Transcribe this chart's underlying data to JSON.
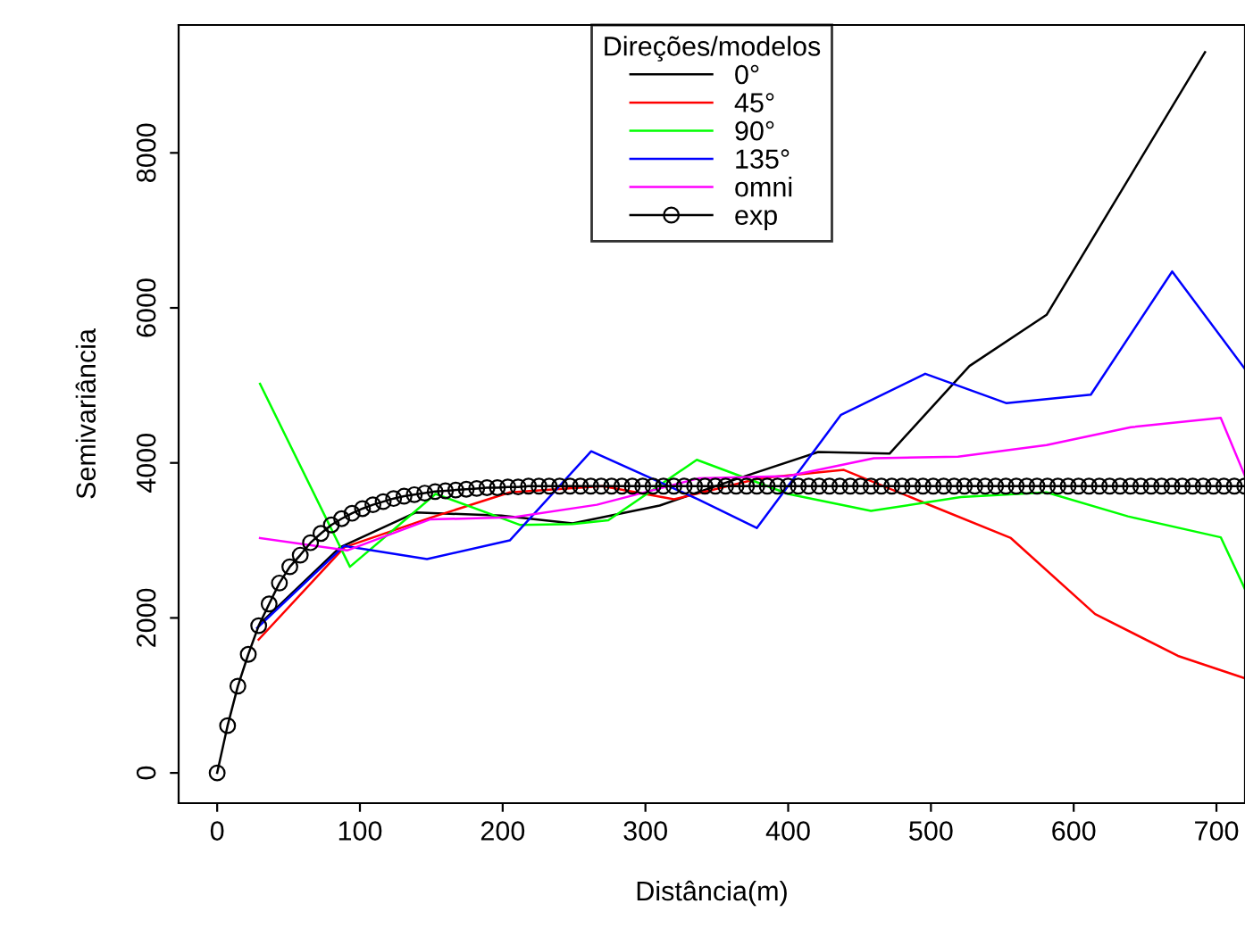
{
  "chart_data": {
    "type": "line",
    "xlabel": "Distância(m)",
    "ylabel": "Semivariância",
    "legend_title": "Direções/modelos",
    "legend": "top",
    "grid": false,
    "xlim": [
      -27,
      720
    ],
    "ylim": [
      -390,
      9650
    ],
    "xticks": [
      0,
      100,
      200,
      300,
      400,
      500,
      600,
      700
    ],
    "yticks": [
      0,
      2000,
      4000,
      6000,
      8000
    ],
    "series": [
      {
        "name": "0°",
        "color": "#000000",
        "x": [
          32,
          86,
          139,
          199,
          249,
          310,
          365,
          421,
          471,
          527,
          581,
          692
        ],
        "values": [
          1960,
          2910,
          3360,
          3320,
          3220,
          3450,
          3800,
          4140,
          4120,
          5250,
          5910,
          9300
        ]
      },
      {
        "name": "45°",
        "color": "#ff0000",
        "x": [
          29,
          89,
          149,
          205,
          270,
          320,
          380,
          439,
          500,
          556,
          615,
          673,
          720
        ],
        "values": [
          1720,
          2910,
          3290,
          3620,
          3700,
          3530,
          3800,
          3910,
          3450,
          3030,
          2050,
          1510,
          1220
        ]
      },
      {
        "name": "90°",
        "color": "#00ff00",
        "x": [
          30,
          93,
          153,
          212,
          249,
          274,
          336,
          400,
          458,
          521,
          581,
          638,
          703,
          720
        ],
        "values": [
          5020,
          2660,
          3600,
          3200,
          3210,
          3260,
          4040,
          3600,
          3380,
          3560,
          3620,
          3310,
          3040,
          2370
        ]
      },
      {
        "name": "135°",
        "color": "#0000ff",
        "x": [
          28,
          89,
          147,
          205,
          262,
          337,
          378,
          437,
          496,
          553,
          612,
          669,
          720
        ],
        "values": [
          1870,
          2930,
          2760,
          3000,
          4150,
          3530,
          3160,
          4620,
          5150,
          4770,
          4880,
          6470,
          5210
        ]
      },
      {
        "name": "omni",
        "color": "#ff00ff",
        "x": [
          30,
          91,
          149,
          208,
          266,
          337,
          400,
          460,
          519,
          581,
          640,
          703,
          720
        ],
        "values": [
          3030,
          2870,
          3270,
          3300,
          3460,
          3800,
          3830,
          4060,
          4080,
          4230,
          4460,
          4580,
          3830
        ]
      },
      {
        "name": "exp",
        "color": "#000000",
        "marker": "circle",
        "x": [
          0,
          7.3,
          14.5,
          21.8,
          29.1,
          36.4,
          43.6,
          50.9,
          58.2,
          65.4,
          72.7,
          80,
          87.2,
          94.5,
          101.8,
          109.1,
          116.3,
          123.6,
          130.9,
          138.1,
          145.4,
          152.7,
          159.9,
          167.2,
          174.5,
          181.8,
          189,
          196.3,
          203.6,
          210.8,
          218.1,
          225.4,
          232.6,
          239.9,
          247.2,
          254.5,
          261.7,
          269,
          276.3,
          283.5,
          290.8,
          298.1,
          305.3,
          312.6,
          319.9,
          327.2,
          334.4,
          341.7,
          349,
          356.2,
          363.5,
          370.8,
          378,
          385.3,
          392.6,
          399.9,
          407.1,
          414.4,
          421.7,
          428.9,
          436.2,
          443.5,
          450.7,
          458,
          465.3,
          472.6,
          479.8,
          487.1,
          494.4,
          501.6,
          508.9,
          516.2,
          523.4,
          530.7,
          538,
          545.3,
          552.5,
          559.8,
          567.1,
          574.3,
          581.6,
          588.9,
          596.1,
          603.4,
          610.7,
          618,
          625.2,
          632.5,
          639.8,
          647,
          654.3,
          661.6,
          668.8,
          676.1,
          683.4,
          690.7,
          697.9,
          705.2,
          712.5,
          719.8
        ],
        "values": [
          0,
          610,
          1120,
          1530,
          1900,
          2180,
          2450,
          2660,
          2810,
          2970,
          3090,
          3200,
          3280,
          3350,
          3410,
          3460,
          3500,
          3540,
          3570,
          3590,
          3610,
          3630,
          3640,
          3650,
          3660,
          3670,
          3680,
          3680,
          3690,
          3690,
          3700,
          3700,
          3700,
          3700,
          3700,
          3700,
          3700,
          3700,
          3700,
          3700,
          3700,
          3700,
          3700,
          3700,
          3700,
          3700,
          3700,
          3700,
          3700,
          3700,
          3700,
          3700,
          3700,
          3700,
          3700,
          3700,
          3700,
          3700,
          3700,
          3700,
          3700,
          3700,
          3700,
          3700,
          3700,
          3700,
          3700,
          3700,
          3700,
          3700,
          3700,
          3700,
          3700,
          3700,
          3700,
          3700,
          3700,
          3700,
          3700,
          3700,
          3700,
          3700,
          3700,
          3700,
          3700,
          3700,
          3700,
          3700,
          3700,
          3700,
          3700,
          3700,
          3700,
          3700,
          3700,
          3700,
          3700,
          3700,
          3700,
          3700
        ]
      }
    ]
  }
}
